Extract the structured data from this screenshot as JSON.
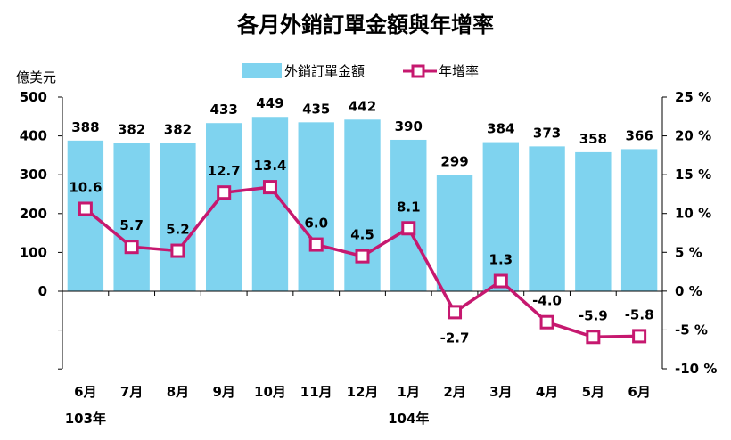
{
  "chart_data": {
    "type": "bar+line",
    "title": "各月外銷訂單金額與年增率",
    "y_left_unit": "億美元",
    "y_left_ticks": [
      "500",
      "400",
      "300",
      "200",
      "100",
      "0"
    ],
    "y_left_range": [
      -200,
      500
    ],
    "y_right_ticks": [
      "25 %",
      "20 %",
      "15 %",
      "10 %",
      "5 %",
      "0 %",
      "-5 %",
      "-10 %"
    ],
    "y_right_range": [
      -10,
      25
    ],
    "categories": [
      "6月",
      "7月",
      "8月",
      "9月",
      "10月",
      "11月",
      "12月",
      "1月",
      "2月",
      "3月",
      "4月",
      "5月",
      "6月"
    ],
    "year_labels": [
      {
        "index": 0,
        "text": "103年"
      },
      {
        "index": 7,
        "text": "104年"
      }
    ],
    "series": [
      {
        "name": "外銷訂單金額",
        "type": "bar",
        "axis": "left",
        "color": "#7fd3ef",
        "values": [
          388,
          382,
          382,
          433,
          449,
          435,
          442,
          390,
          299,
          384,
          373,
          358,
          366
        ],
        "labels": [
          "388",
          "382",
          "382",
          "433",
          "449",
          "435",
          "442",
          "390",
          "299",
          "384",
          "373",
          "358",
          "366"
        ]
      },
      {
        "name": "年增率",
        "type": "line",
        "axis": "right",
        "color": "#c6186f",
        "values": [
          10.6,
          5.7,
          5.2,
          12.7,
          13.4,
          6.0,
          4.5,
          8.1,
          -2.7,
          1.3,
          -4.0,
          -5.9,
          -5.8
        ],
        "labels": [
          "10.6",
          "5.7",
          "5.2",
          "12.7",
          "13.4",
          "6.0",
          "4.5",
          "8.1",
          "-2.7",
          "1.3",
          "-4.0",
          "-5.9",
          "-5.8"
        ]
      }
    ],
    "legend": "top-center",
    "grid": false
  }
}
